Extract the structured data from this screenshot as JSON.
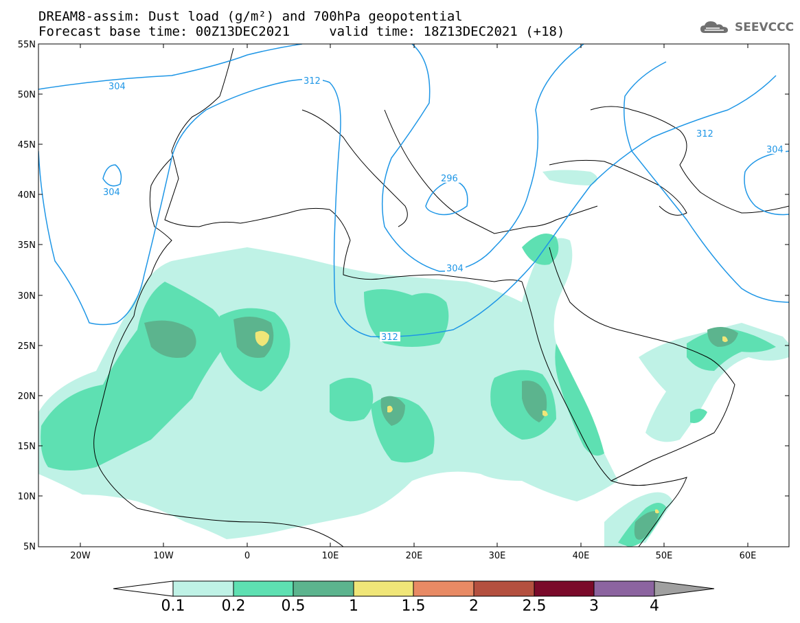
{
  "header": {
    "title_line1": "DREAM8-assim: Dust load (g/m²) and 700hPa geopotential",
    "title_line2": "Forecast base time: 00Z13DEC2021     valid time: 18Z13DEC2021 (+18)"
  },
  "logo": {
    "text": "SEEVCCC",
    "icon": "cloud-icon"
  },
  "map": {
    "lat_labels": [
      "55N",
      "50N",
      "45N",
      "40N",
      "35N",
      "30N",
      "25N",
      "20N",
      "15N",
      "10N",
      "5N"
    ],
    "lon_labels": [
      "20W",
      "10W",
      "0",
      "10E",
      "20E",
      "30E",
      "40E",
      "50E",
      "60E"
    ],
    "contour_labels": [
      "304",
      "312",
      "304",
      "296",
      "304",
      "312",
      "312",
      "304"
    ]
  },
  "colorbar": {
    "labels": [
      "0.1",
      "0.2",
      "0.5",
      "1",
      "1.5",
      "2",
      "2.5",
      "3",
      "4"
    ],
    "colors": [
      "#ffffff",
      "#bff2e6",
      "#5ee0b2",
      "#5cb48e",
      "#f0e678",
      "#e88a64",
      "#b4503f",
      "#7a0a2a",
      "#8c64a0",
      "#a0a0a0"
    ]
  },
  "colors": {
    "dust_0_1": "#bff2e6",
    "dust_0_2": "#5ee0b2",
    "dust_0_5": "#5cb48e",
    "dust_1": "#f0e678",
    "contour": "#1e96e6"
  }
}
